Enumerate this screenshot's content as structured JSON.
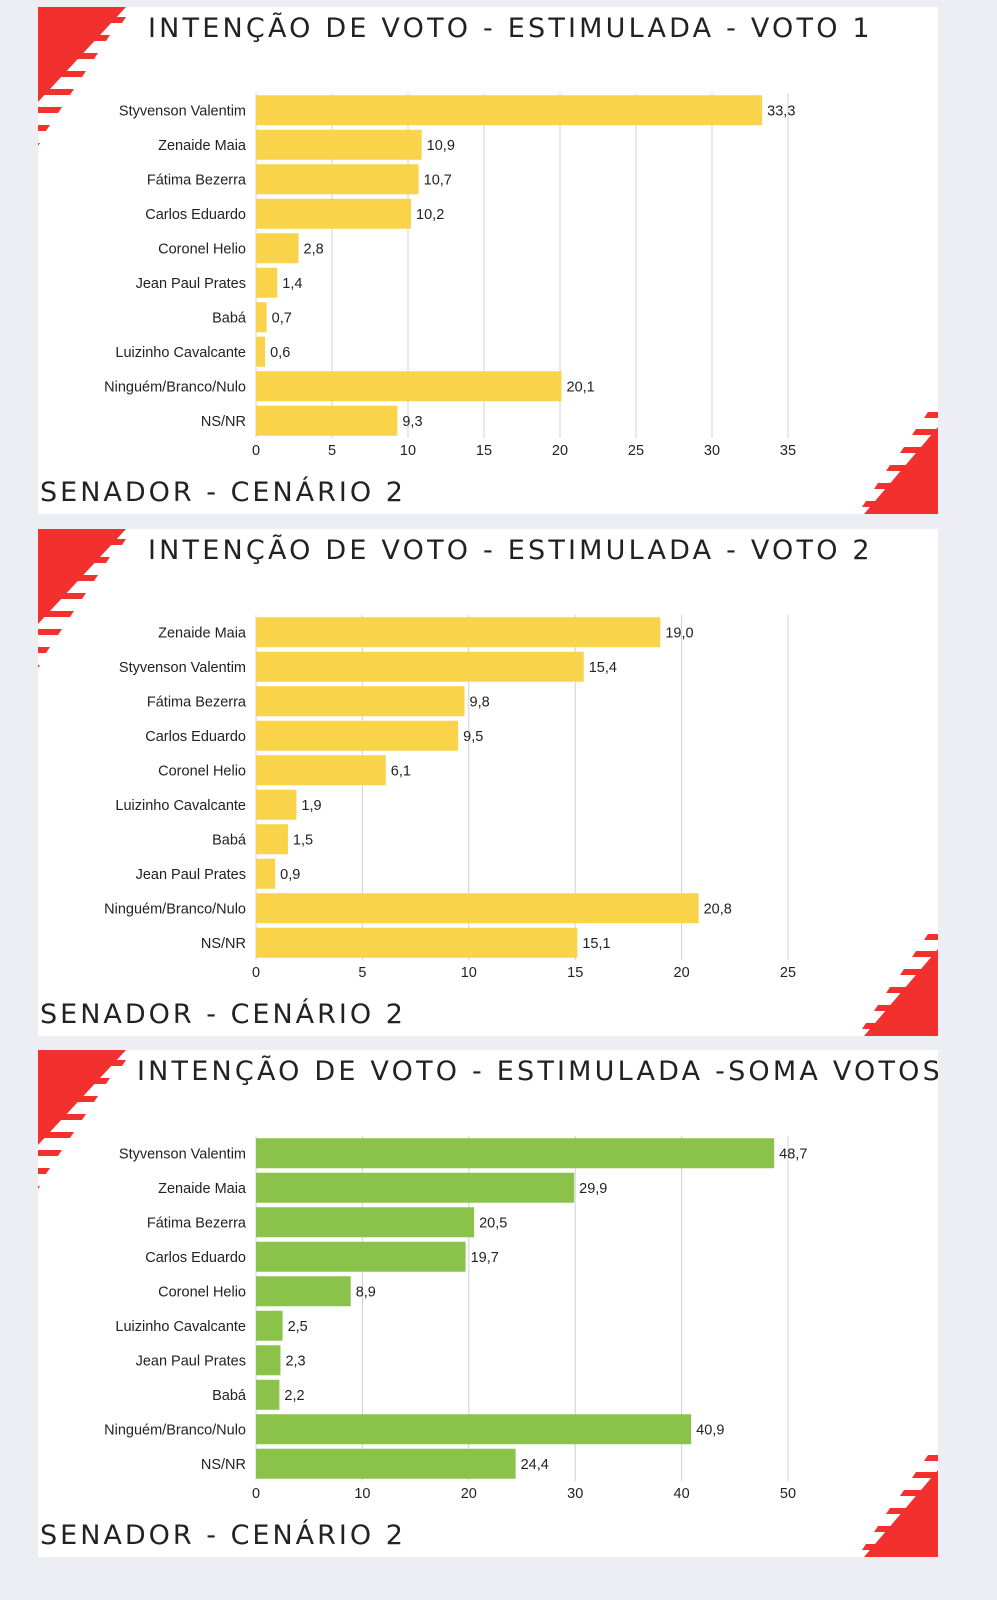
{
  "colors": {
    "accent": "#f2312f",
    "yellow": "#f9d44b",
    "green": "#8bc34a",
    "grid": "#d0d0d0"
  },
  "chart_data": [
    {
      "type": "bar",
      "orientation": "horizontal",
      "title": "INTENÇÃO DE VOTO - ESTIMULADA - VOTO 1",
      "footer": "SENADOR - CENÁRIO 2",
      "color": "#f9d44b",
      "categories": [
        "Styvenson Valentim",
        "Zenaide Maia",
        "Fátima Bezerra",
        "Carlos Eduardo",
        "Coronel Helio",
        "Jean Paul Prates",
        "Babá",
        "Luizinho Cavalcante",
        "Ninguém/Branco/Nulo",
        "NS/NR"
      ],
      "values": [
        33.3,
        10.9,
        10.7,
        10.2,
        2.8,
        1.4,
        0.7,
        0.6,
        20.1,
        9.3
      ],
      "value_labels": [
        "33,3",
        "10,9",
        "10,7",
        "10,2",
        "2,8",
        "1,4",
        "0,7",
        "0,6",
        "20,1",
        "9,3"
      ],
      "xlim": [
        0,
        35
      ],
      "xticks": [
        0,
        5,
        10,
        15,
        20,
        25,
        30,
        35
      ],
      "grid": true
    },
    {
      "type": "bar",
      "orientation": "horizontal",
      "title": "INTENÇÃO DE VOTO - ESTIMULADA - VOTO 2",
      "footer": "SENADOR - CENÁRIO 2",
      "color": "#f9d44b",
      "categories": [
        "Zenaide Maia",
        "Styvenson Valentim",
        "Fátima Bezerra",
        "Carlos Eduardo",
        "Coronel Helio",
        "Luizinho Cavalcante",
        "Babá",
        "Jean Paul Prates",
        "Ninguém/Branco/Nulo",
        "NS/NR"
      ],
      "values": [
        19.0,
        15.4,
        9.8,
        9.5,
        6.1,
        1.9,
        1.5,
        0.9,
        20.8,
        15.1
      ],
      "value_labels": [
        "19,0",
        "15,4",
        "9,8",
        "9,5",
        "6,1",
        "1,9",
        "1,5",
        "0,9",
        "20,8",
        "15,1"
      ],
      "xlim": [
        0,
        25
      ],
      "xticks": [
        0,
        5,
        10,
        15,
        20,
        25
      ],
      "grid": true
    },
    {
      "type": "bar",
      "orientation": "horizontal",
      "title": "INTENÇÃO DE VOTO - ESTIMULADA -SOMA VOTOS",
      "footer": "SENADOR - CENÁRIO 2",
      "color": "#8bc34a",
      "categories": [
        "Styvenson Valentim",
        "Zenaide Maia",
        "Fátima Bezerra",
        "Carlos Eduardo",
        "Coronel Helio",
        "Luizinho Cavalcante",
        "Jean Paul Prates",
        "Babá",
        "Ninguém/Branco/Nulo",
        "NS/NR"
      ],
      "values": [
        48.7,
        29.9,
        20.5,
        19.7,
        8.9,
        2.5,
        2.3,
        2.2,
        40.9,
        24.4
      ],
      "value_labels": [
        "48,7",
        "29,9",
        "20,5",
        "19,7",
        "8,9",
        "2,5",
        "2,3",
        "2,2",
        "40,9",
        "24,4"
      ],
      "xlim": [
        0,
        50
      ],
      "xticks": [
        0,
        10,
        20,
        30,
        40,
        50
      ],
      "grid": true
    }
  ]
}
